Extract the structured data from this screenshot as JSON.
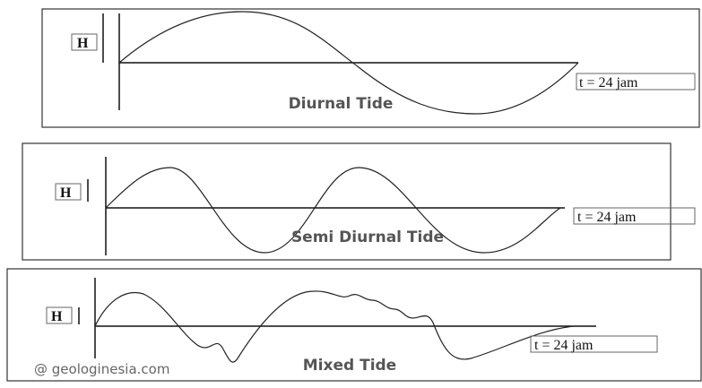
{
  "panels": [
    {
      "label": "H",
      "time_label": "t = 24 jam",
      "title": "Diurnal Tide"
    },
    {
      "label": "H",
      "time_label": "t = 24 jam",
      "title": "Semi Diurnal Tide"
    },
    {
      "label": "H",
      "time_label": "t = 24 jam",
      "title": "Mixed Tide"
    }
  ],
  "watermark": "@ geologinesia.com"
}
